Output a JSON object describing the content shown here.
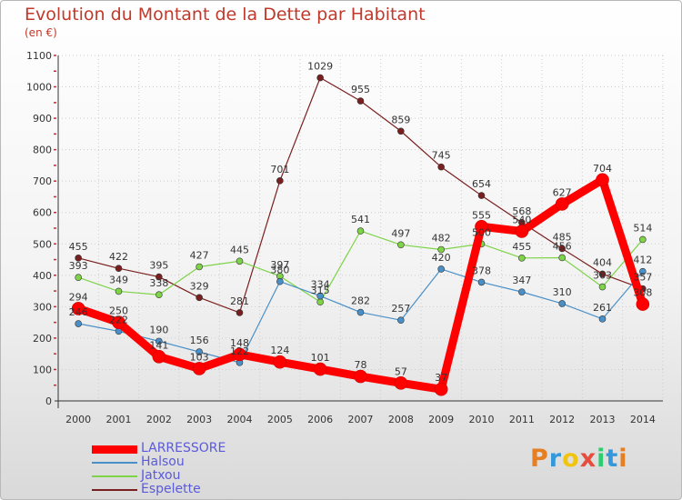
{
  "title": "Evolution du Montant de la Dette par Habitant",
  "subtitle": "(en €)",
  "logo": {
    "text": "Proxiti",
    "letters": [
      {
        "ch": "P",
        "color": "#e67e22"
      },
      {
        "ch": "r",
        "color": "#3498db"
      },
      {
        "ch": "o",
        "color": "#f1c40f"
      },
      {
        "ch": "x",
        "color": "#e74c3c"
      },
      {
        "ch": "i",
        "color": "#2ecc71"
      },
      {
        "ch": "t",
        "color": "#3498db"
      },
      {
        "ch": "i",
        "color": "#e67e22"
      }
    ]
  },
  "chart_data": {
    "type": "line",
    "x": [
      "2000",
      "2001",
      "2002",
      "2003",
      "2004",
      "2005",
      "2006",
      "2007",
      "2008",
      "2009",
      "2010",
      "2011",
      "2012",
      "2013",
      "2014"
    ],
    "yticks": [
      0,
      100,
      200,
      300,
      400,
      500,
      600,
      700,
      800,
      900,
      1000,
      1100
    ],
    "ylim": [
      0,
      1100
    ],
    "legend_position": "bottom-left",
    "series": [
      {
        "name": "LARRESSORE",
        "color": "#ff0000",
        "values": [
          294,
          250,
          141,
          103,
          148,
          124,
          101,
          78,
          57,
          37,
          555,
          540,
          627,
          704,
          308
        ],
        "labels": [
          "294",
          "250",
          "141",
          "103",
          "148",
          "124",
          "101",
          "78",
          "57",
          "37",
          "555",
          "540",
          "627",
          "704",
          "308"
        ]
      },
      {
        "name": "Halsou",
        "color": "#4a90c8",
        "values": [
          246,
          222,
          190,
          156,
          122,
          380,
          334,
          282,
          257,
          420,
          378,
          347,
          310,
          261,
          412
        ],
        "labels": [
          "246",
          "222",
          "190",
          "156",
          "122",
          "380",
          "334",
          "282",
          "257",
          "420",
          "378",
          "347",
          "310",
          "261",
          "412"
        ]
      },
      {
        "name": "Jatxou",
        "color": "#7ed348",
        "values": [
          393,
          349,
          338,
          427,
          445,
          397,
          315,
          541,
          497,
          482,
          500,
          455,
          456,
          363,
          514
        ],
        "labels": [
          "393",
          "349",
          "338",
          "427",
          "445",
          "397",
          "315",
          "541",
          "497",
          "482",
          "500",
          "455",
          "456",
          "363",
          "514"
        ]
      },
      {
        "name": "Espelette",
        "color": "#7a1f1f",
        "values": [
          455,
          422,
          395,
          329,
          281,
          701,
          1029,
          955,
          859,
          745,
          654,
          568,
          485,
          404,
          357
        ],
        "labels": [
          "455",
          "422",
          "395",
          "329",
          "281",
          "701",
          "1029",
          "955",
          "859",
          "745",
          "654",
          "568",
          "485",
          "404",
          "357"
        ]
      }
    ]
  }
}
